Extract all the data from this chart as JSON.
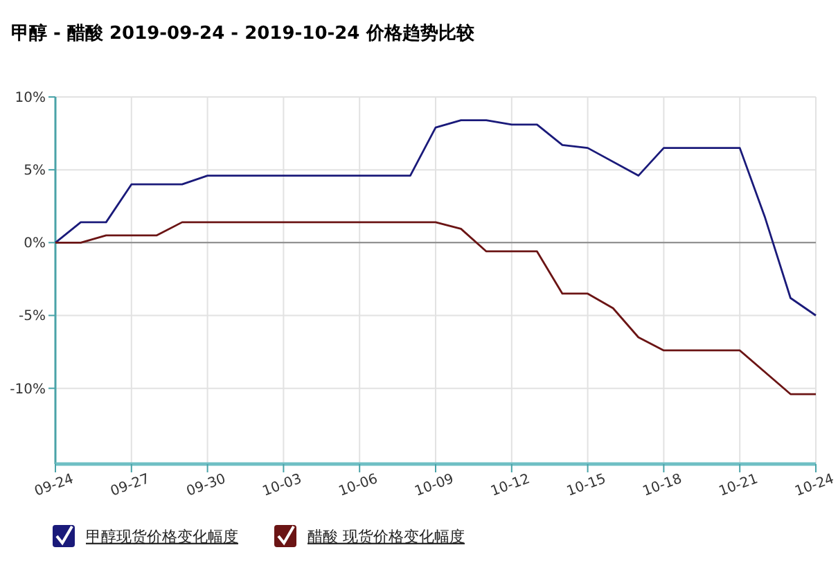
{
  "chart_data": {
    "type": "line",
    "title": "甲醇 - 醋酸 2019-09-24 - 2019-10-24 价格趋势比较",
    "xlim": [
      "2019-09-24",
      "2019-10-24"
    ],
    "xticks": [
      {
        "value": "2019-09-24",
        "label": "09-24"
      },
      {
        "value": "2019-09-27",
        "label": "09-27"
      },
      {
        "value": "2019-09-30",
        "label": "09-30"
      },
      {
        "value": "2019-10-03",
        "label": "10-03"
      },
      {
        "value": "2019-10-06",
        "label": "10-06"
      },
      {
        "value": "2019-10-09",
        "label": "10-09"
      },
      {
        "value": "2019-10-12",
        "label": "10-12"
      },
      {
        "value": "2019-10-15",
        "label": "10-15"
      },
      {
        "value": "2019-10-18",
        "label": "10-18"
      },
      {
        "value": "2019-10-21",
        "label": "10-21"
      },
      {
        "value": "2019-10-24",
        "label": "10-24"
      }
    ],
    "ylim": [
      -15.2,
      10
    ],
    "yticks": [
      {
        "value": 10,
        "label": "10%"
      },
      {
        "value": 5,
        "label": "5%"
      },
      {
        "value": 0,
        "label": "0%"
      },
      {
        "value": -5,
        "label": "-5%"
      },
      {
        "value": -10,
        "label": "-10%"
      }
    ],
    "grid": true,
    "legend": "bottom",
    "marker": "none",
    "line_style": "solid",
    "ref_lines": [
      {
        "axis": "y",
        "value": 0,
        "color": "#888888"
      }
    ],
    "series": [
      {
        "name": "甲醇现货价格变化幅度",
        "color": "#1a1a7a",
        "x": [
          "2019-09-24",
          "2019-09-25",
          "2019-09-26",
          "2019-09-27",
          "2019-09-29",
          "2019-09-30",
          "2019-10-08",
          "2019-10-09",
          "2019-10-10",
          "2019-10-11",
          "2019-10-12",
          "2019-10-13",
          "2019-10-14",
          "2019-10-15",
          "2019-10-17",
          "2019-10-18",
          "2019-10-21",
          "2019-10-22",
          "2019-10-23",
          "2019-10-24"
        ],
        "values": [
          0,
          1.4,
          1.4,
          4.0,
          4.0,
          4.6,
          4.6,
          7.9,
          8.4,
          8.4,
          8.1,
          8.1,
          6.7,
          6.5,
          4.6,
          6.5,
          6.5,
          1.7,
          -3.8,
          -5.0
        ]
      },
      {
        "name": "醋酸 现货价格变化幅度",
        "color": "#6b1414",
        "x": [
          "2019-09-24",
          "2019-09-25",
          "2019-09-26",
          "2019-09-28",
          "2019-09-29",
          "2019-10-09",
          "2019-10-10",
          "2019-10-11",
          "2019-10-13",
          "2019-10-14",
          "2019-10-15",
          "2019-10-16",
          "2019-10-17",
          "2019-10-18",
          "2019-10-21",
          "2019-10-23",
          "2019-10-24"
        ],
        "values": [
          0,
          0,
          0.5,
          0.5,
          1.4,
          1.4,
          0.95,
          -0.6,
          -0.6,
          -3.5,
          -3.5,
          -4.5,
          -6.5,
          -7.4,
          -7.4,
          -10.4,
          -10.4
        ]
      }
    ]
  }
}
